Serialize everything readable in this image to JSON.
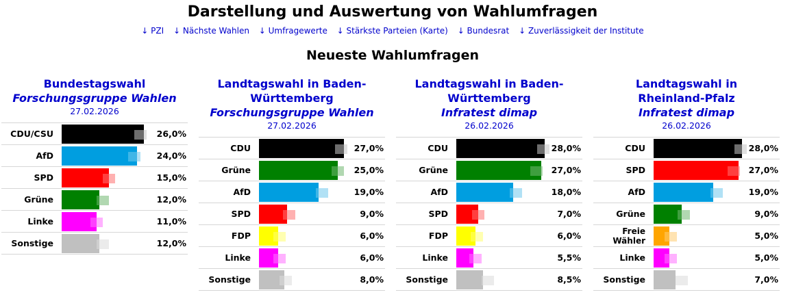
{
  "page": {
    "title": "Darstellung und Auswertung von Wahlumfragen",
    "nav": [
      "↓ PZI",
      "↓ Nächste Wahlen",
      "↓ Umfragewerte",
      "↓ Stärkste Parteien (Karte)",
      "↓ Bundesrat",
      "↓ Zuverlässigkeit der Institute"
    ],
    "subtitle": "Neueste Wahlumfragen"
  },
  "polls": [
    {
      "election": "Bundestagswahl",
      "institute": "Forschungsgruppe Wahlen",
      "date": "27.02.2026",
      "results": [
        {
          "party": "CDU/CSU",
          "value": 26.0,
          "label": "26,0%",
          "color": "#000000",
          "prev": 25.0
        },
        {
          "party": "AfD",
          "value": 24.0,
          "label": "24,0%",
          "color": "#009ee0",
          "prev": 23.0
        },
        {
          "party": "SPD",
          "value": 15.0,
          "label": "15,0%",
          "color": "#ff0000",
          "prev": 15.0
        },
        {
          "party": "Grüne",
          "value": 12.0,
          "label": "12,0%",
          "color": "#008000",
          "prev": 13.0
        },
        {
          "party": "Linke",
          "value": 11.0,
          "label": "11,0%",
          "color": "#ff00ff",
          "prev": 11.0
        },
        {
          "party": "Sonstige",
          "value": 12.0,
          "label": "12,0%",
          "color": "#c0c0c0",
          "prev": 13.0
        }
      ]
    },
    {
      "election": "Landtagswahl in Baden-Württemberg",
      "institute": "Forschungsgruppe Wahlen",
      "date": "27.02.2026",
      "results": [
        {
          "party": "CDU",
          "value": 27.0,
          "label": "27,0%",
          "color": "#000000",
          "prev": 26.0
        },
        {
          "party": "Grüne",
          "value": 25.0,
          "label": "25,0%",
          "color": "#008000",
          "prev": 25.0
        },
        {
          "party": "AfD",
          "value": 19.0,
          "label": "19,0%",
          "color": "#009ee0",
          "prev": 20.0
        },
        {
          "party": "SPD",
          "value": 9.0,
          "label": "9,0%",
          "color": "#ff0000",
          "prev": 9.5
        },
        {
          "party": "FDP",
          "value": 6.0,
          "label": "6,0%",
          "color": "#ffff00",
          "prev": 6.5
        },
        {
          "party": "Linke",
          "value": 6.0,
          "label": "6,0%",
          "color": "#ff00ff",
          "prev": 6.5
        },
        {
          "party": "Sonstige",
          "value": 8.0,
          "label": "8,0%",
          "color": "#c0c0c0",
          "prev": 8.5
        }
      ]
    },
    {
      "election": "Landtagswahl in Baden-Württemberg",
      "institute": "Infratest dimap",
      "date": "26.02.2026",
      "results": [
        {
          "party": "CDU",
          "value": 28.0,
          "label": "28,0%",
          "color": "#000000",
          "prev": 27.5
        },
        {
          "party": "Grüne",
          "value": 27.0,
          "label": "27,0%",
          "color": "#008000",
          "prev": 25.5
        },
        {
          "party": "AfD",
          "value": 18.0,
          "label": "18,0%",
          "color": "#009ee0",
          "prev": 19.0
        },
        {
          "party": "SPD",
          "value": 7.0,
          "label": "7,0%",
          "color": "#ff0000",
          "prev": 7.0
        },
        {
          "party": "FDP",
          "value": 6.0,
          "label": "6,0%",
          "color": "#ffff00",
          "prev": 6.5
        },
        {
          "party": "Linke",
          "value": 5.5,
          "label": "5,5%",
          "color": "#ff00ff",
          "prev": 6.0
        },
        {
          "party": "Sonstige",
          "value": 8.5,
          "label": "8,5%",
          "color": "#c0c0c0",
          "prev": 10.0
        }
      ]
    },
    {
      "election": "Landtagswahl in Rheinland-Pfalz",
      "institute": "Infratest dimap",
      "date": "26.02.2026",
      "results": [
        {
          "party": "CDU",
          "value": 28.0,
          "label": "28,0%",
          "color": "#000000",
          "prev": 27.5
        },
        {
          "party": "SPD",
          "value": 27.0,
          "label": "27,0%",
          "color": "#ff0000",
          "prev": 25.5
        },
        {
          "party": "AfD",
          "value": 19.0,
          "label": "19,0%",
          "color": "#009ee0",
          "prev": 20.0
        },
        {
          "party": "Grüne",
          "value": 9.0,
          "label": "9,0%",
          "color": "#008000",
          "prev": 9.5
        },
        {
          "party": "Freie Wähler",
          "value": 5.0,
          "label": "5,0%",
          "color": "#ffa500",
          "prev": 5.5
        },
        {
          "party": "Linke",
          "value": 5.0,
          "label": "5,0%",
          "color": "#ff00ff",
          "prev": 5.5
        },
        {
          "party": "Sonstige",
          "value": 7.0,
          "label": "7,0%",
          "color": "#c0c0c0",
          "prev": 9.0
        }
      ]
    }
  ]
}
